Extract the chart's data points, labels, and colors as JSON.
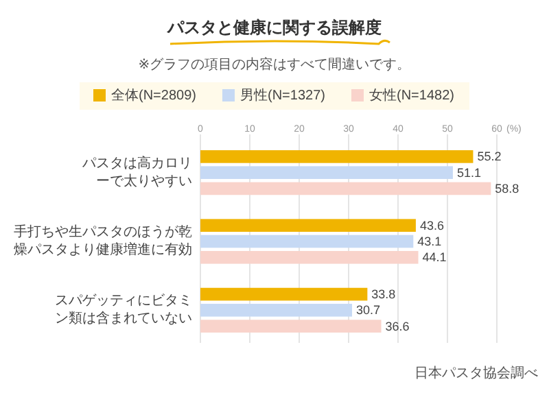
{
  "chart_data": {
    "type": "bar",
    "orientation": "horizontal",
    "title": "パスタと健康に関する誤解度",
    "subtitle": "※グラフの項目の内容はすべて間違いです。",
    "xlabel": "(%)",
    "categories": [
      "パスタは高カロリーで太りやすい",
      "手打ちや生パスタのほうが乾燥パスタより健康増進に有効",
      "スパゲッティにビタミン類は含まれていない"
    ],
    "series": [
      {
        "name": "全体(N=2809)",
        "color": "#f0b400",
        "values": [
          55.2,
          43.6,
          33.8
        ]
      },
      {
        "name": "男性(N=1327)",
        "color": "#c6d9f4",
        "values": [
          51.1,
          43.1,
          30.7
        ]
      },
      {
        "name": "女性(N=1482)",
        "color": "#f9d3cb",
        "values": [
          58.8,
          44.1,
          36.6
        ]
      }
    ],
    "xlim": [
      0,
      60
    ],
    "xticks": [
      0,
      10,
      20,
      30,
      40,
      50,
      60
    ],
    "grid": "x",
    "legend": "top",
    "data_labels": true,
    "annotations": [
      "日本パスタ協会調べ"
    ]
  }
}
